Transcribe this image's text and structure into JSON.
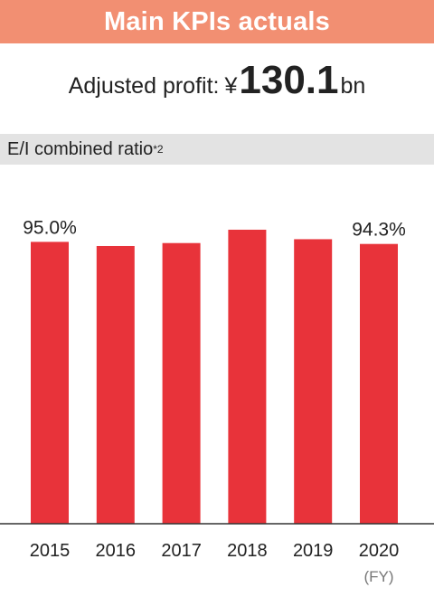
{
  "header": {
    "title": "Main KPIs actuals"
  },
  "profit": {
    "label": "Adjusted profit:",
    "currency": "¥",
    "value": "130.1",
    "unit": "bn"
  },
  "section": {
    "title": "E/I combined ratio",
    "note": "*2"
  },
  "chart_data": {
    "type": "bar",
    "categories": [
      "2015",
      "2016",
      "2017",
      "2018",
      "2019",
      "2020"
    ],
    "values": [
      95.0,
      93.6,
      94.6,
      99.1,
      95.9,
      94.3
    ],
    "data_labels": [
      "95.0%",
      "",
      "",
      "",
      "",
      "94.3%"
    ],
    "xlabel": "(FY)",
    "ylabel": "",
    "ylim": [
      0,
      112
    ],
    "bar_color": "#e8333a",
    "grid": false
  }
}
